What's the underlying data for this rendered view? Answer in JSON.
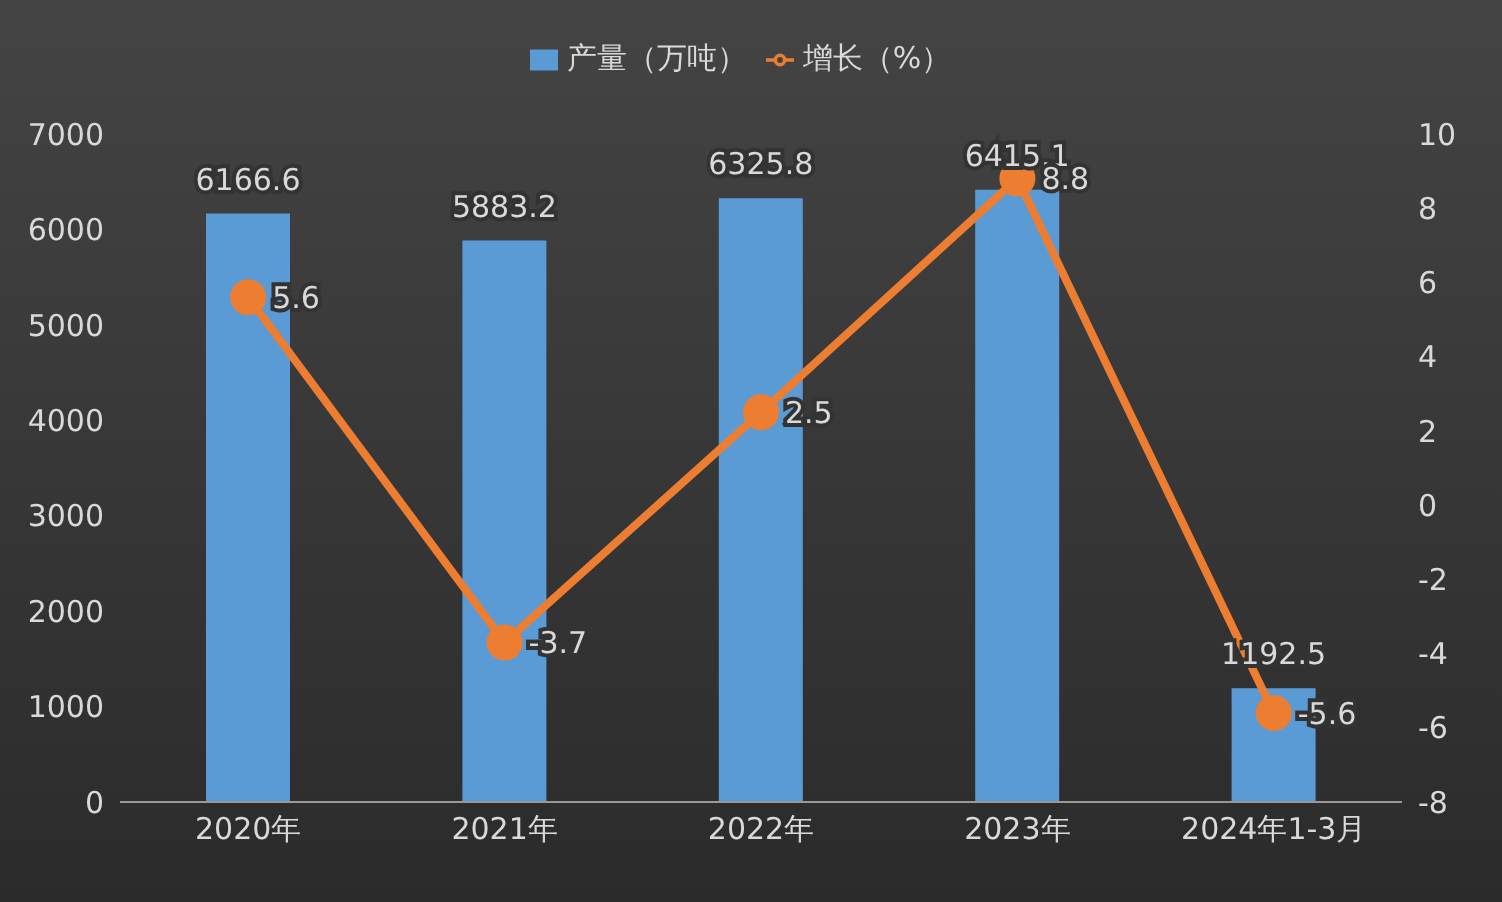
{
  "chart_data": {
    "type": "bar",
    "categories": [
      "2020年",
      "2021年",
      "2022年",
      "2023年",
      "2024年1-3月"
    ],
    "series": [
      {
        "name": "产量（万吨）",
        "color": "#5b9bd5",
        "values": [
          6166.6,
          5883.2,
          6325.8,
          6415.1,
          1192.5
        ]
      },
      {
        "name": "增长（%）",
        "type": "line",
        "axis": "y2",
        "color": "#ed7d31",
        "values": [
          5.6,
          -3.7,
          2.5,
          8.8,
          -5.6
        ]
      }
    ],
    "ylim": [
      0,
      7000
    ],
    "yticks": [
      0,
      1000,
      2000,
      3000,
      4000,
      5000,
      6000,
      7000
    ],
    "y2lim": [
      -8,
      10
    ],
    "y2ticks": [
      -8,
      -6,
      -4,
      -2,
      0,
      2,
      4,
      6,
      8,
      10
    ],
    "data_labels": true,
    "legend": "top",
    "marker": "circle",
    "grid": false
  }
}
